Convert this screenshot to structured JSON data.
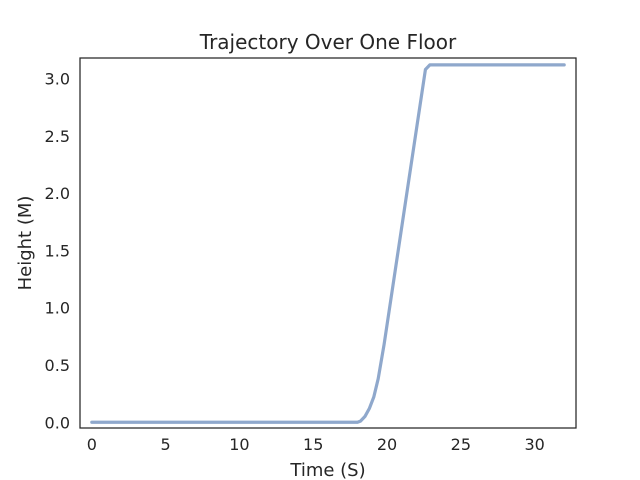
{
  "chart_data": {
    "type": "line",
    "title": "Trajectory Over One Floor",
    "xlabel": "Time (S)",
    "ylabel": "Height (M)",
    "xlim": [
      -0.8,
      32.8
    ],
    "ylim": [
      -0.05,
      3.18
    ],
    "xticks": [
      0,
      5,
      10,
      15,
      20,
      25,
      30
    ],
    "yticks": [
      0.0,
      0.5,
      1.0,
      1.5,
      2.0,
      2.5,
      3.0
    ],
    "grid": false,
    "series": [
      {
        "color": "#8FA8CC",
        "x": [
          0,
          18,
          18.2,
          18.5,
          18.8,
          19.1,
          19.4,
          19.8,
          22.6,
          22.9,
          32
        ],
        "y": [
          0,
          0,
          0.01,
          0.05,
          0.12,
          0.22,
          0.38,
          0.68,
          3.08,
          3.12,
          3.12
        ]
      }
    ]
  }
}
